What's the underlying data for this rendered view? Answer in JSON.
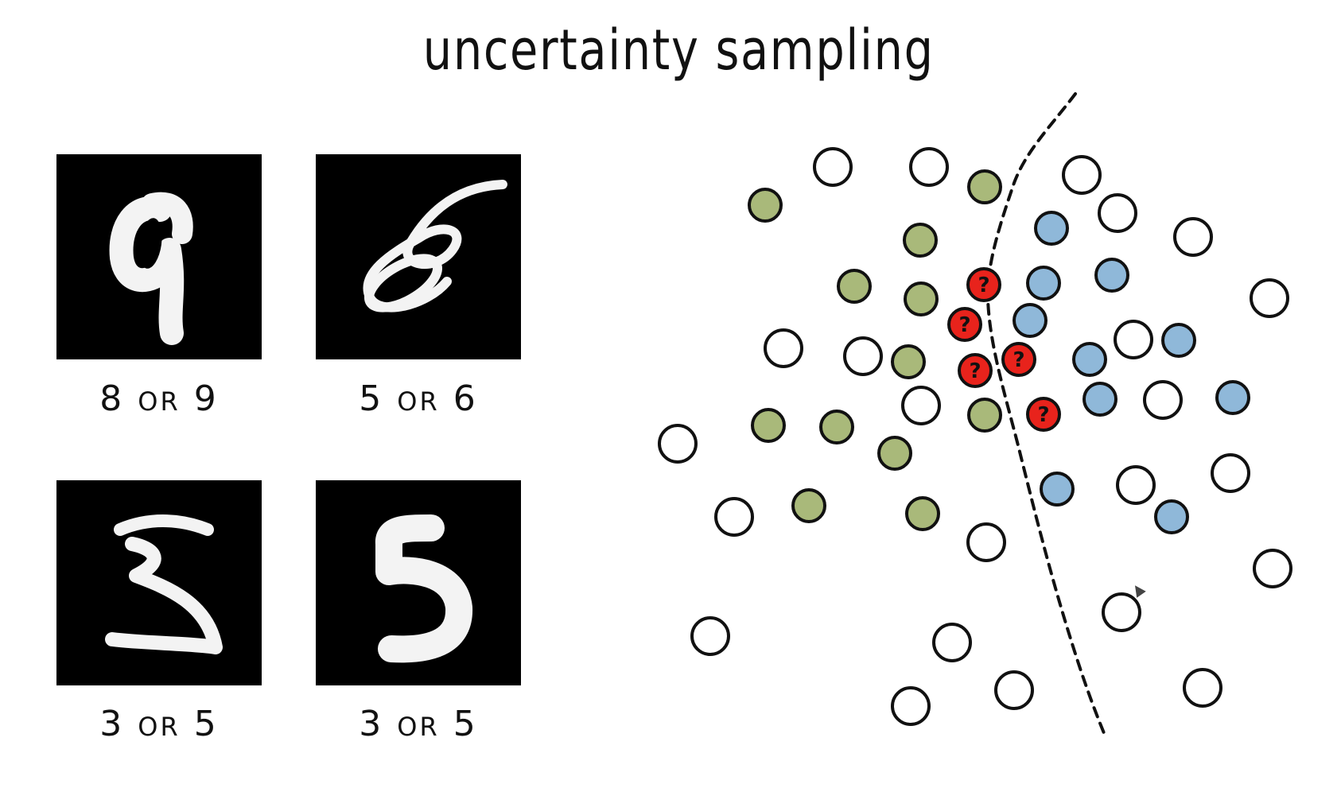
{
  "title": "uncertainty sampling",
  "digits": [
    {
      "glyph": "9",
      "caption_a": "8",
      "caption_sep": "OR",
      "caption_b": "9"
    },
    {
      "glyph": "6",
      "caption_a": "5",
      "caption_sep": "OR",
      "caption_b": "6"
    },
    {
      "glyph": "3",
      "caption_a": "3",
      "caption_sep": "OR",
      "caption_b": "5"
    },
    {
      "glyph": "5",
      "caption_a": "3",
      "caption_sep": "OR",
      "caption_b": "5"
    }
  ],
  "scatter": {
    "query_symbol": "?",
    "colors": {
      "unlabeled": "#ffffff",
      "class_a": "#a9b97a",
      "class_b": "#8fb8d9",
      "query": "#e8231c",
      "stroke": "#111111"
    }
  }
}
